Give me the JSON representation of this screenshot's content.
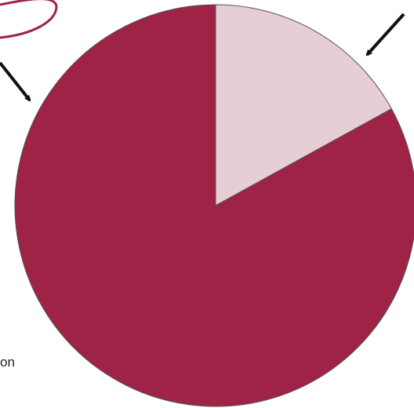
{
  "chart_data": {
    "type": "pie",
    "title": "",
    "slices": [
      {
        "name": "",
        "value": 17,
        "color": "#e6cdd6"
      },
      {
        "name": "",
        "value": 83,
        "color": "#9e2346"
      }
    ],
    "start_angle_deg": 0,
    "direction": "clockwise",
    "stroke_color": "#555555"
  },
  "annotations": {
    "callout_oval_color": "#9e2346",
    "arrow_color": "#111111",
    "partial_text": "on"
  }
}
